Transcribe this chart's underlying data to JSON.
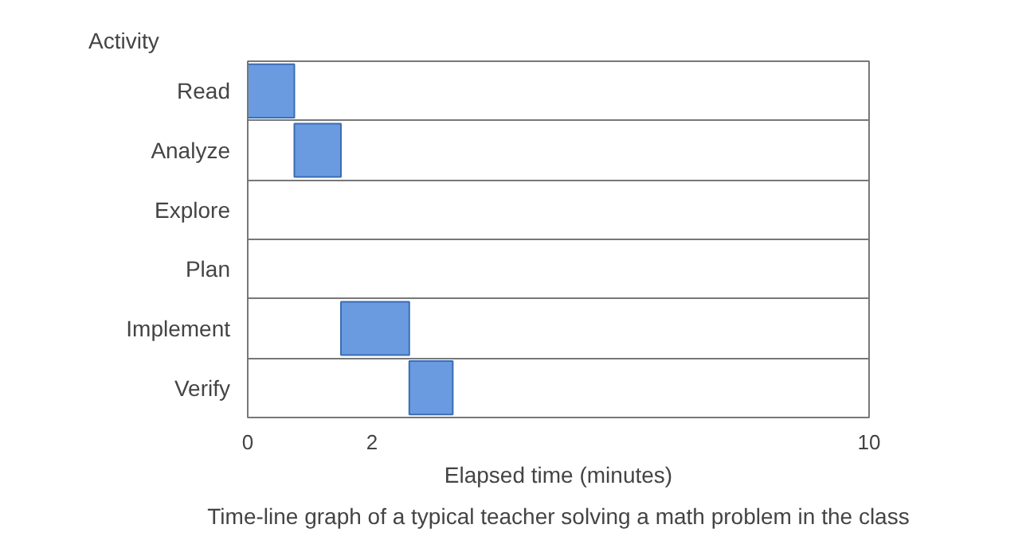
{
  "chart_data": {
    "type": "bar",
    "orientation": "horizontal",
    "ylabel": "Activity",
    "xlabel": "Elapsed time (minutes)",
    "categories": [
      "Read",
      "Analyze",
      "Explore",
      "Plan",
      "Implement",
      "Verify"
    ],
    "base": [
      0,
      0.75,
      null,
      null,
      1.5,
      2.6
    ],
    "values": [
      0.75,
      0.75,
      null,
      null,
      1.1,
      0.7
    ],
    "color": "#6a9be0",
    "xlim": [
      0,
      10
    ],
    "xticks": [
      0,
      2,
      10
    ],
    "grid": "y",
    "annotations": [
      "Time-line graph of a typical teacher solving a math problem in the class"
    ]
  }
}
